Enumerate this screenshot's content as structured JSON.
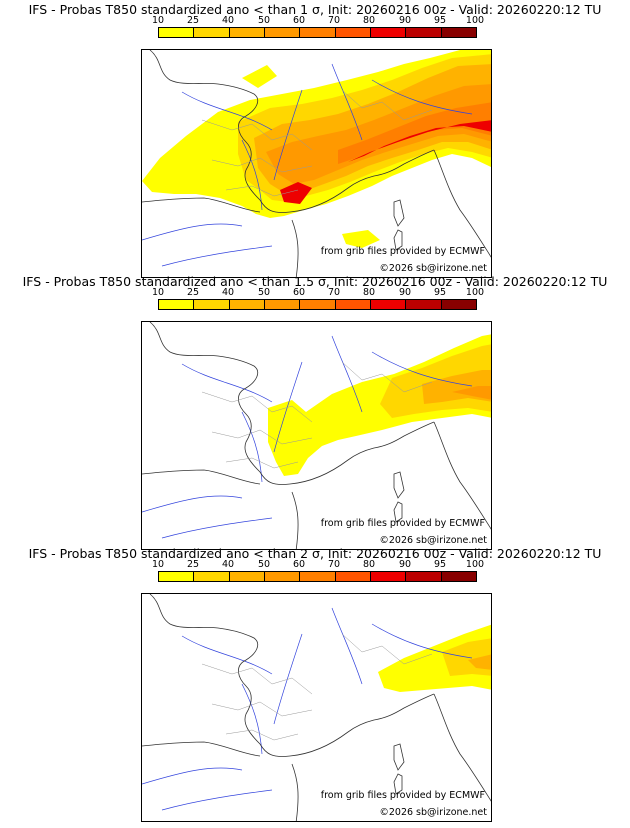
{
  "colorbar": {
    "ticks": [
      "10",
      "25",
      "40",
      "50",
      "60",
      "70",
      "80",
      "90",
      "95",
      "100"
    ],
    "colors": [
      "#ffff00",
      "#ffd700",
      "#ffb200",
      "#ff9900",
      "#ff7f00",
      "#ff5500",
      "#ee0000",
      "#bb0000",
      "#880000"
    ]
  },
  "panels": [
    {
      "title": "IFS - Probas T850  standardized ano < than 1 σ, Init: 20260216 00z - Valid: 20260220:12 TU"
    },
    {
      "title": "IFS - Probas T850  standardized ano < than 1.5 σ, Init: 20260216 00z - Valid: 20260220:12 TU"
    },
    {
      "title": "IFS - Probas T850  standardized ano < than 2 σ, Init: 20260216 00z - Valid: 20260220:12 TU"
    }
  ],
  "credits": {
    "source": "from grib files provided by ECMWF",
    "copyright": "©2026 sb@irizone.net"
  }
}
